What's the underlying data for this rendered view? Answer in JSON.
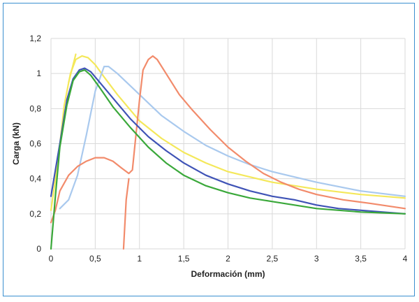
{
  "chart_data": {
    "type": "line",
    "xlabel": "Deformación (mm)",
    "ylabel": "Carga (kN)",
    "xlim": [
      0,
      4
    ],
    "ylim": [
      0,
      1.2
    ],
    "x_ticks": [
      "0",
      "0,5",
      "1",
      "1,5",
      "2",
      "2,5",
      "3",
      "3,5",
      "4"
    ],
    "y_ticks": [
      "0",
      "0,2",
      "0,4",
      "0,6",
      "0,8",
      "1",
      "1,2"
    ],
    "grid": true,
    "series": [
      {
        "color": "#f4e85a",
        "points": [
          [
            0.0,
            0.22
          ],
          [
            0.08,
            0.5
          ],
          [
            0.15,
            0.82
          ],
          [
            0.22,
            1.0
          ],
          [
            0.28,
            1.08
          ],
          [
            0.35,
            1.1
          ],
          [
            0.42,
            1.09
          ],
          [
            0.5,
            1.05
          ],
          [
            0.6,
            0.98
          ],
          [
            0.75,
            0.88
          ],
          [
            1.0,
            0.73
          ],
          [
            1.25,
            0.63
          ],
          [
            1.5,
            0.55
          ],
          [
            1.75,
            0.49
          ],
          [
            2.0,
            0.44
          ],
          [
            2.25,
            0.41
          ],
          [
            2.5,
            0.38
          ],
          [
            3.0,
            0.34
          ],
          [
            3.5,
            0.31
          ],
          [
            4.0,
            0.29
          ]
        ]
      },
      {
        "color": "#a9c9ee",
        "points": [
          [
            0.1,
            0.23
          ],
          [
            0.2,
            0.28
          ],
          [
            0.3,
            0.42
          ],
          [
            0.4,
            0.65
          ],
          [
            0.5,
            0.9
          ],
          [
            0.6,
            1.04
          ],
          [
            0.65,
            1.04
          ],
          [
            0.75,
            1.0
          ],
          [
            1.0,
            0.88
          ],
          [
            1.25,
            0.76
          ],
          [
            1.5,
            0.67
          ],
          [
            1.75,
            0.59
          ],
          [
            2.0,
            0.53
          ],
          [
            2.25,
            0.48
          ],
          [
            2.5,
            0.44
          ],
          [
            3.0,
            0.38
          ],
          [
            3.5,
            0.33
          ],
          [
            4.0,
            0.3
          ]
        ]
      },
      {
        "color": "#f28b6b",
        "points": [
          [
            0.0,
            0.15
          ],
          [
            0.05,
            0.22
          ],
          [
            0.1,
            0.33
          ],
          [
            0.2,
            0.42
          ],
          [
            0.3,
            0.47
          ],
          [
            0.4,
            0.5
          ],
          [
            0.5,
            0.52
          ],
          [
            0.6,
            0.52
          ],
          [
            0.7,
            0.5
          ],
          [
            0.8,
            0.46
          ],
          [
            0.88,
            0.43
          ],
          [
            0.92,
            0.45
          ],
          [
            0.95,
            0.6
          ],
          [
            1.0,
            0.85
          ],
          [
            1.04,
            1.02
          ],
          [
            1.1,
            1.08
          ],
          [
            1.15,
            1.1
          ],
          [
            1.2,
            1.08
          ],
          [
            1.3,
            1.0
          ],
          [
            1.45,
            0.88
          ],
          [
            1.6,
            0.79
          ],
          [
            1.8,
            0.68
          ],
          [
            2.0,
            0.58
          ],
          [
            2.2,
            0.5
          ],
          [
            2.4,
            0.43
          ],
          [
            2.6,
            0.38
          ],
          [
            2.8,
            0.34
          ],
          [
            3.0,
            0.31
          ],
          [
            3.3,
            0.28
          ],
          [
            3.6,
            0.26
          ],
          [
            4.0,
            0.23
          ]
        ]
      },
      {
        "color": "#3f53b6",
        "points": [
          [
            0.0,
            0.3
          ],
          [
            0.1,
            0.6
          ],
          [
            0.18,
            0.85
          ],
          [
            0.25,
            0.97
          ],
          [
            0.32,
            1.02
          ],
          [
            0.38,
            1.03
          ],
          [
            0.45,
            1.01
          ],
          [
            0.55,
            0.95
          ],
          [
            0.7,
            0.86
          ],
          [
            0.9,
            0.74
          ],
          [
            1.1,
            0.64
          ],
          [
            1.3,
            0.56
          ],
          [
            1.5,
            0.49
          ],
          [
            1.75,
            0.42
          ],
          [
            2.0,
            0.37
          ],
          [
            2.25,
            0.33
          ],
          [
            2.5,
            0.3
          ],
          [
            2.75,
            0.28
          ],
          [
            3.0,
            0.25
          ],
          [
            3.25,
            0.23
          ],
          [
            3.5,
            0.22
          ],
          [
            4.0,
            0.2
          ]
        ]
      },
      {
        "color": "#3aa83a",
        "points": [
          [
            0.0,
            0.0
          ],
          [
            0.05,
            0.3
          ],
          [
            0.1,
            0.58
          ],
          [
            0.18,
            0.82
          ],
          [
            0.25,
            0.96
          ],
          [
            0.32,
            1.01
          ],
          [
            0.38,
            1.02
          ],
          [
            0.45,
            0.99
          ],
          [
            0.55,
            0.92
          ],
          [
            0.7,
            0.81
          ],
          [
            0.9,
            0.69
          ],
          [
            1.1,
            0.58
          ],
          [
            1.3,
            0.49
          ],
          [
            1.5,
            0.42
          ],
          [
            1.75,
            0.36
          ],
          [
            2.0,
            0.32
          ],
          [
            2.25,
            0.29
          ],
          [
            2.5,
            0.27
          ],
          [
            2.75,
            0.25
          ],
          [
            3.0,
            0.23
          ],
          [
            3.5,
            0.21
          ],
          [
            4.0,
            0.2
          ]
        ]
      },
      {
        "color": "#f28b6b",
        "points": [
          [
            0.82,
            0.0
          ],
          [
            0.85,
            0.28
          ],
          [
            0.88,
            0.4
          ]
        ]
      },
      {
        "color": "#f4e85a",
        "points": [
          [
            0.2,
            0.95
          ],
          [
            0.25,
            1.05
          ],
          [
            0.28,
            1.11
          ]
        ]
      }
    ]
  }
}
